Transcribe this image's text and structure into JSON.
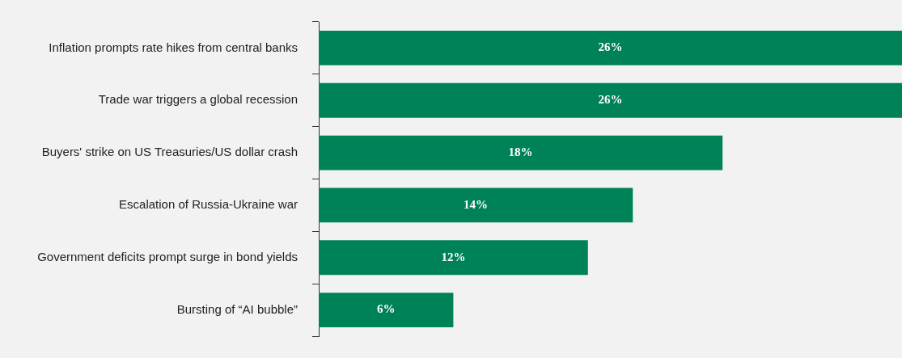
{
  "chart_data": {
    "type": "bar",
    "orientation": "horizontal",
    "categories": [
      "Inflation prompts rate hikes from central banks",
      "Trade war triggers a global recession",
      "Buyers' strike on US Treasuries/US dollar crash",
      "Escalation of Russia-Ukraine war",
      "Government deficits prompt surge in bond yields",
      "Bursting of “AI bubble”"
    ],
    "values": [
      26,
      26,
      18,
      14,
      12,
      6
    ],
    "value_labels": [
      "26%",
      "26%",
      "18%",
      "14%",
      "12%",
      "6%"
    ],
    "color": "#008259",
    "xlim": [
      0,
      26
    ],
    "tick_labels": "y",
    "legend": false
  }
}
